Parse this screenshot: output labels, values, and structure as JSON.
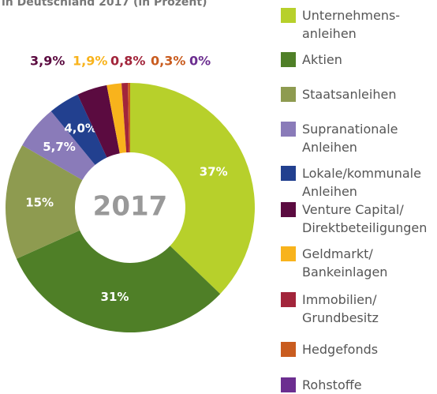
{
  "chart_data": {
    "type": "donut",
    "title": "in Deutschland 2017 (in Prozent)",
    "center_label": "2017",
    "categories": [
      "Unternehmens-\nanleihen",
      "Aktien",
      "Staatsanleihen",
      "Supranationale\nAnleihen",
      "Lokale/kommunale\nAnleihen",
      "Venture Capital/\nDirektbeteiligungen",
      "Geldmarkt/\nBankeinlagen",
      "Immobilien/\nGrundbesitz",
      "Hedgefonds",
      "Rohstoffe"
    ],
    "values": [
      37,
      31,
      15,
      5.7,
      4.0,
      3.9,
      1.9,
      0.8,
      0.3,
      0
    ],
    "value_labels": [
      "37%",
      "31%",
      "15%",
      "5,7%",
      "4,0%",
      "3,9%",
      "1,9%",
      "0,8%",
      "0,3%",
      "0%"
    ],
    "colors": [
      "#b7d02b",
      "#4f7f27",
      "#8e9b50",
      "#8a7bb9",
      "#22408f",
      "#5b0b40",
      "#f8b31c",
      "#a2253b",
      "#c95c1f",
      "#6c2e90"
    ],
    "legend": "right"
  }
}
